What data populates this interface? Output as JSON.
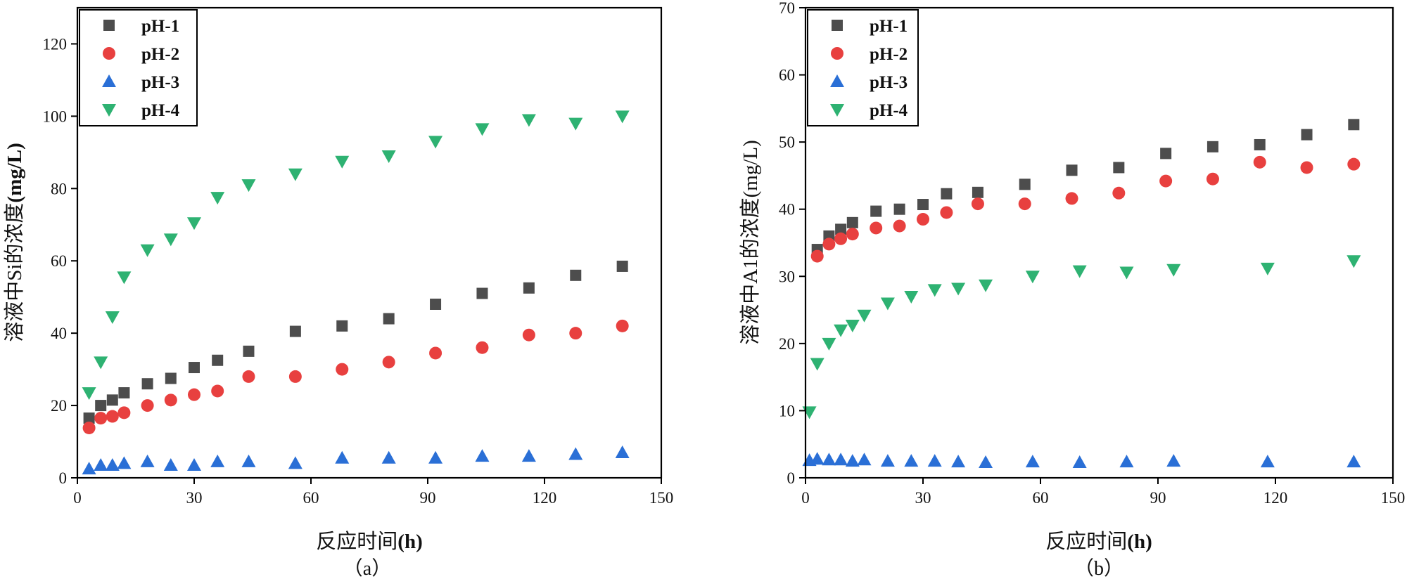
{
  "chart_data": [
    {
      "type": "scatter",
      "panel_label": "（a）",
      "xlabel_main": "反应时间",
      "xlabel_unit": "(h)",
      "ylabel_main": "溶液中Si的浓度",
      "ylabel_unit": "(mg/L)",
      "xlim": [
        0,
        150
      ],
      "ylim": [
        0,
        130
      ],
      "xticks": [
        0,
        30,
        60,
        90,
        120,
        150
      ],
      "yticks": [
        0,
        20,
        40,
        60,
        80,
        100,
        120
      ],
      "legend_position": "top-left",
      "series": [
        {
          "name": "pH-1",
          "marker": "square",
          "color": "#4d4d4d",
          "x": [
            3,
            6,
            9,
            12,
            18,
            24,
            30,
            36,
            44,
            56,
            68,
            80,
            92,
            104,
            116,
            128,
            140
          ],
          "y": [
            16.5,
            20,
            21.5,
            23.5,
            26,
            27.5,
            30.5,
            32.5,
            35,
            40.5,
            42,
            44,
            48,
            51,
            52.5,
            56,
            58.5
          ]
        },
        {
          "name": "pH-2",
          "marker": "circle",
          "color": "#e8403f",
          "x": [
            3,
            6,
            9,
            12,
            18,
            24,
            30,
            36,
            44,
            56,
            68,
            80,
            92,
            104,
            116,
            128,
            140
          ],
          "y": [
            13.8,
            16.5,
            17,
            18,
            20,
            21.5,
            23,
            24,
            28,
            28,
            30,
            32,
            34.5,
            36,
            39.5,
            40,
            42
          ]
        },
        {
          "name": "pH-3",
          "marker": "triangle-up",
          "color": "#2a6fd6",
          "x": [
            3,
            6,
            9,
            12,
            18,
            24,
            30,
            36,
            44,
            56,
            68,
            80,
            92,
            104,
            116,
            128,
            140
          ],
          "y": [
            2.5,
            3.5,
            3.5,
            4,
            4.5,
            3.5,
            3.5,
            4.5,
            4.5,
            4,
            5.5,
            5.5,
            5.5,
            6,
            6,
            6.5,
            7
          ]
        },
        {
          "name": "pH-4",
          "marker": "triangle-down",
          "color": "#2eb272",
          "x": [
            3,
            6,
            9,
            12,
            18,
            24,
            30,
            36,
            44,
            56,
            68,
            80,
            92,
            104,
            116,
            128,
            140
          ],
          "y": [
            23.5,
            32,
            44.5,
            55.5,
            63,
            66,
            70.5,
            77.5,
            81,
            84,
            87.5,
            89,
            93,
            96.5,
            99,
            98,
            100
          ]
        }
      ]
    },
    {
      "type": "scatter",
      "panel_label": "（b）",
      "xlabel_main": "反应时间",
      "xlabel_unit": "(h)",
      "ylabel_main": "溶液中A1的浓度",
      "ylabel_unit": "(mg/L)",
      "xlim": [
        0,
        150
      ],
      "ylim": [
        0,
        70
      ],
      "xticks": [
        0,
        30,
        60,
        90,
        120,
        150
      ],
      "yticks": [
        0,
        10,
        20,
        30,
        40,
        50,
        60,
        70
      ],
      "legend_position": "top-left",
      "series": [
        {
          "name": "pH-1",
          "marker": "square",
          "color": "#4d4d4d",
          "x": [
            3,
            6,
            9,
            12,
            18,
            24,
            30,
            36,
            44,
            56,
            68,
            80,
            92,
            104,
            116,
            128,
            140
          ],
          "y": [
            34,
            36,
            37,
            38,
            39.7,
            40,
            40.7,
            42.3,
            42.5,
            43.7,
            45.8,
            46.2,
            48.3,
            49.3,
            49.6,
            51.1,
            52.6
          ]
        },
        {
          "name": "pH-2",
          "marker": "circle",
          "color": "#e8403f",
          "x": [
            3,
            6,
            9,
            12,
            18,
            24,
            30,
            36,
            44,
            56,
            68,
            80,
            92,
            104,
            116,
            128,
            140
          ],
          "y": [
            33,
            34.8,
            35.6,
            36.3,
            37.2,
            37.5,
            38.5,
            39.5,
            40.8,
            40.8,
            41.6,
            42.4,
            44.2,
            44.5,
            47,
            46.2,
            46.7
          ]
        },
        {
          "name": "pH-3",
          "marker": "triangle-up",
          "color": "#2a6fd6",
          "x": [
            1,
            3,
            6,
            9,
            12,
            15,
            21,
            27,
            33,
            39,
            46,
            58,
            70,
            82,
            94,
            118,
            140
          ],
          "y": [
            2.6,
            2.8,
            2.7,
            2.7,
            2.5,
            2.7,
            2.5,
            2.5,
            2.5,
            2.4,
            2.3,
            2.4,
            2.3,
            2.4,
            2.5,
            2.4,
            2.4
          ]
        },
        {
          "name": "pH-4",
          "marker": "triangle-down",
          "color": "#2eb272",
          "x": [
            1,
            3,
            6,
            9,
            12,
            15,
            21,
            27,
            33,
            39,
            46,
            58,
            70,
            82,
            94,
            118,
            140
          ],
          "y": [
            9.8,
            17,
            20,
            22,
            22.7,
            24.2,
            26,
            27,
            28,
            28.2,
            28.7,
            30,
            30.8,
            30.6,
            31,
            31.2,
            32.3
          ]
        }
      ]
    }
  ]
}
